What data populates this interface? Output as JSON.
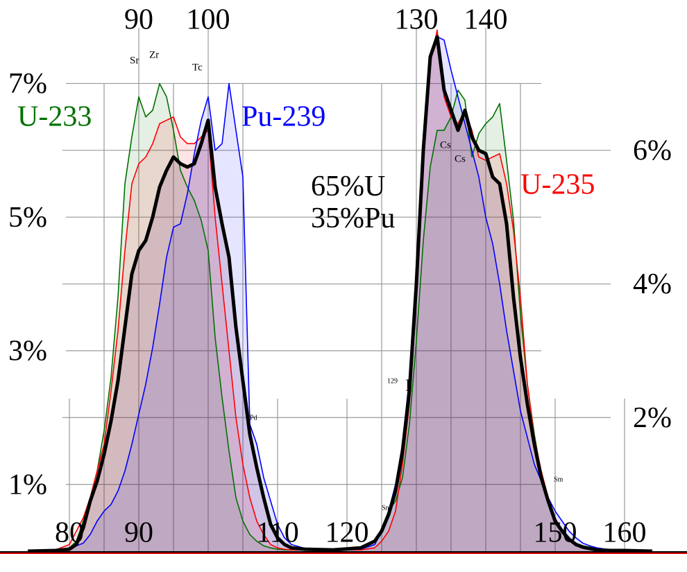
{
  "chart_data": {
    "type": "area",
    "x": [
      74,
      78,
      80,
      81,
      82,
      83,
      84,
      85,
      86,
      87,
      88,
      89,
      90,
      91,
      92,
      93,
      94,
      95,
      96,
      97,
      98,
      99,
      100,
      101,
      102,
      103,
      104,
      105,
      106,
      107,
      108,
      109,
      110,
      111,
      112,
      114,
      118,
      122,
      124,
      125,
      126,
      127,
      128,
      129,
      130,
      131,
      132,
      133,
      134,
      135,
      136,
      137,
      138,
      139,
      140,
      141,
      142,
      143,
      144,
      145,
      146,
      147,
      148,
      149,
      150,
      151,
      152,
      153,
      154,
      155,
      156,
      158,
      160,
      164
    ],
    "series": [
      {
        "name": "U-233",
        "color": "#007000",
        "values": [
          0,
          0.02,
          0.05,
          0.15,
          0.45,
          0.8,
          1.2,
          1.8,
          2.6,
          3.8,
          5.5,
          6.2,
          6.8,
          6.5,
          6.6,
          7.0,
          6.8,
          6.3,
          5.7,
          5.45,
          5.25,
          4.95,
          4.5,
          3.2,
          2.3,
          1.5,
          0.8,
          0.45,
          0.25,
          0.15,
          0.08,
          0.05,
          0.03,
          0.02,
          0.02,
          0.02,
          0.02,
          0.03,
          0.1,
          0.35,
          0.6,
          0.75,
          1.1,
          1.9,
          3.15,
          4.65,
          5.75,
          6.3,
          6.3,
          6.5,
          6.9,
          6.75,
          5.9,
          6.25,
          6.4,
          6.5,
          6.7,
          5.85,
          4.95,
          3.55,
          2.5,
          1.75,
          1.15,
          0.75,
          0.45,
          0.3,
          0.2,
          0.12,
          0.08,
          0.06,
          0.04,
          0.02,
          0.01,
          0
        ]
      },
      {
        "name": "U-235",
        "color": "#ff0000",
        "values": [
          0,
          0.02,
          0.1,
          0.3,
          0.5,
          0.8,
          1.2,
          1.6,
          2.4,
          3.3,
          4.5,
          5.5,
          5.8,
          5.9,
          6.1,
          6.4,
          6.45,
          6.5,
          6.2,
          6.1,
          6.1,
          6.2,
          6.3,
          5.0,
          4.0,
          3.0,
          2.0,
          1.3,
          0.8,
          0.45,
          0.25,
          0.1,
          0.05,
          0.03,
          0.02,
          0.02,
          0.02,
          0.02,
          0.05,
          0.15,
          0.3,
          0.6,
          1.3,
          2.2,
          3.8,
          5.8,
          7.3,
          7.8,
          6.8,
          6.5,
          6.4,
          6.6,
          6.3,
          5.9,
          5.85,
          5.9,
          5.95,
          5.5,
          4.8,
          3.8,
          2.5,
          1.7,
          1.2,
          0.8,
          0.5,
          0.3,
          0.18,
          0.1,
          0.06,
          0.04,
          0.02,
          0.01,
          0.01,
          0
        ]
      },
      {
        "name": "Pu-239",
        "color": "#0000ff",
        "values": [
          0,
          0.01,
          0.05,
          0.08,
          0.12,
          0.25,
          0.45,
          0.6,
          0.7,
          0.9,
          1.2,
          1.6,
          2.05,
          2.5,
          3.05,
          3.7,
          4.4,
          4.85,
          4.9,
          5.35,
          5.95,
          6.45,
          6.8,
          6.0,
          6.1,
          7.0,
          6.3,
          5.6,
          1.9,
          1.6,
          1.1,
          0.75,
          0.4,
          0.2,
          0.1,
          0.04,
          0.02,
          0.03,
          0.1,
          0.3,
          0.6,
          1.0,
          1.6,
          2.6,
          4.2,
          6.2,
          7.4,
          7.7,
          7.65,
          7.2,
          6.8,
          6.4,
          6.0,
          5.6,
          5.0,
          4.6,
          4.0,
          3.3,
          2.7,
          2.1,
          1.7,
          1.3,
          1.05,
          0.8,
          0.6,
          0.45,
          0.3,
          0.2,
          0.12,
          0.08,
          0.05,
          0.02,
          0.01,
          0
        ]
      },
      {
        "name": "65%U 35%Pu",
        "color": "#000000",
        "values": [
          0,
          0.01,
          0.03,
          0.1,
          0.35,
          0.75,
          1.05,
          1.45,
          1.95,
          2.55,
          3.35,
          4.15,
          4.5,
          4.65,
          5.0,
          5.45,
          5.7,
          5.9,
          5.8,
          5.75,
          5.8,
          6.1,
          6.45,
          5.45,
          4.9,
          4.4,
          3.35,
          2.55,
          1.75,
          1.25,
          0.8,
          0.4,
          0.2,
          0.1,
          0.05,
          0.03,
          0.02,
          0.05,
          0.15,
          0.3,
          0.55,
          0.9,
          1.5,
          2.4,
          4.0,
          6.0,
          7.4,
          7.7,
          6.9,
          6.6,
          6.3,
          6.6,
          6.2,
          6.0,
          5.95,
          5.6,
          5.5,
          4.9,
          3.8,
          2.9,
          2.2,
          1.6,
          1.1,
          0.75,
          0.45,
          0.3,
          0.18,
          0.1,
          0.06,
          0.04,
          0.02,
          0.01,
          0.01,
          0
        ]
      }
    ],
    "xlim": [
      70,
      169
    ],
    "xticks": [
      80,
      90,
      110,
      120,
      150,
      160
    ],
    "x2ticks": [
      90,
      100,
      130,
      140
    ],
    "xminorticks": [
      85,
      95,
      105,
      125,
      135,
      145
    ],
    "ylim": [
      0,
      8.25
    ],
    "yticks": [
      {
        "value": 1,
        "label": "1%"
      },
      {
        "value": 3,
        "label": "3%"
      },
      {
        "value": 5,
        "label": "5%"
      },
      {
        "value": 7,
        "label": "7%"
      }
    ],
    "y2lim": [
      0,
      8.25
    ],
    "y2ticks": [
      {
        "value": 2,
        "label": "2%"
      },
      {
        "value": 4,
        "label": "4%"
      },
      {
        "value": 6,
        "label": "6%"
      }
    ],
    "grid": true,
    "annotations": [
      {
        "text": "Sr"
      },
      {
        "text": "Zr"
      },
      {
        "text": "Tc"
      },
      {
        "text": "Pd"
      },
      {
        "text": "I",
        "superscript": "129"
      },
      {
        "text": "Sn"
      },
      {
        "text": "Cs"
      },
      {
        "text": "Cs"
      },
      {
        "text": "Sm"
      }
    ]
  }
}
